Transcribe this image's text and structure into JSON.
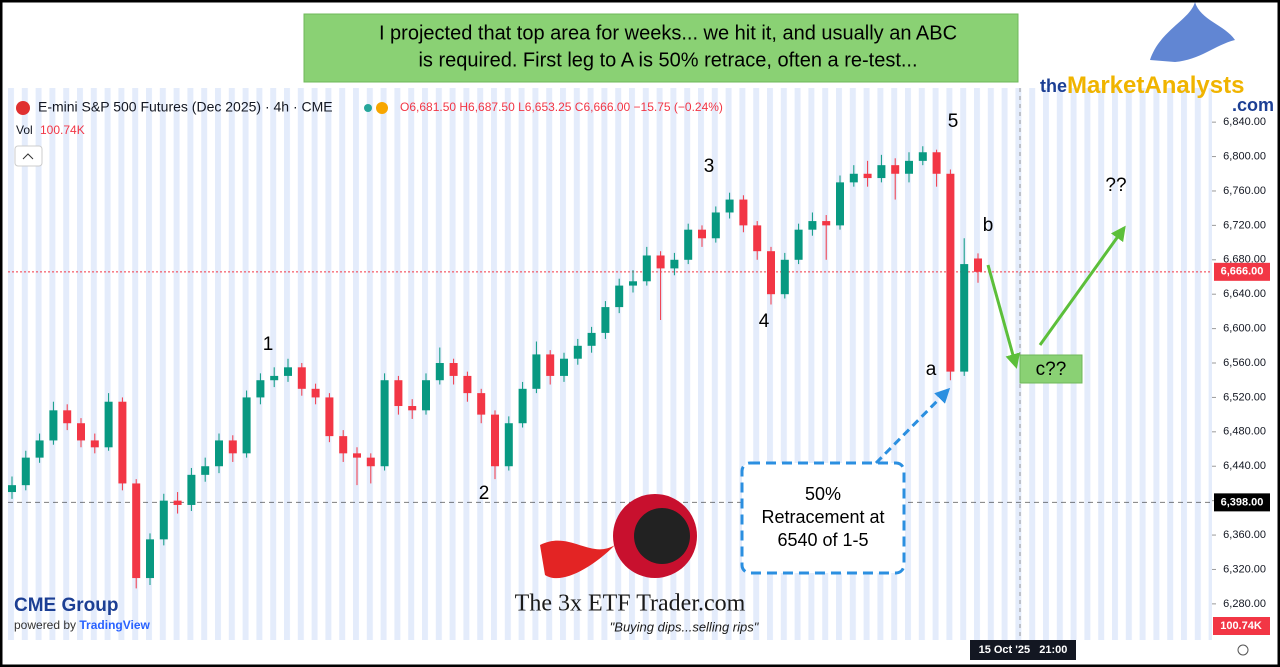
{
  "chart_data": {
    "type": "candlestick",
    "instrument": "E-mini S&P 500 Futures (Dec 2025) · 4h · CME",
    "ohlc_readout": "O6,681.50 H6,687.50 L6,653.25 C6,666.00 −15.75 (−0.24%)",
    "volume_label": "Vol",
    "volume_value": "100.74K",
    "volume_tag": "100.74K",
    "time_label": "15 Oct '25   21:00",
    "up_color": "#089981",
    "down_color": "#f23645",
    "ylim": [
      6238,
      6982
    ],
    "yticks": [
      {
        "value": 6280,
        "label": "6,280.00"
      },
      {
        "value": 6320,
        "label": "6,320.00"
      },
      {
        "value": 6360,
        "label": "6,360.00"
      },
      {
        "value": 6400,
        "label": "6,400.00"
      },
      {
        "value": 6440,
        "label": "6,440.00"
      },
      {
        "value": 6480,
        "label": "6,480.00"
      },
      {
        "value": 6520,
        "label": "6,520.00"
      },
      {
        "value": 6560,
        "label": "6,560.00"
      },
      {
        "value": 6600,
        "label": "6,600.00"
      },
      {
        "value": 6640,
        "label": "6,640.00"
      },
      {
        "value": 6680,
        "label": "6,680.00"
      },
      {
        "value": 6720,
        "label": "6,720.00"
      },
      {
        "value": 6760,
        "label": "6,760.00"
      },
      {
        "value": 6800,
        "label": "6,800.00"
      },
      {
        "value": 6840,
        "label": "6,840.00"
      }
    ],
    "price_lines": [
      {
        "value": 6666,
        "label": "6,666.00",
        "color": "#f23645"
      },
      {
        "value": 6398,
        "label": "6,398.00",
        "color": "#000000"
      }
    ],
    "open": [
      6410,
      6418,
      6450,
      6470,
      6505,
      6490,
      6470,
      6462,
      6515,
      6420,
      6310,
      6355,
      6400,
      6395,
      6430,
      6440,
      6470,
      6455,
      6520,
      6540,
      6545,
      6555,
      6530,
      6520,
      6475,
      6455,
      6450,
      6440,
      6540,
      6510,
      6505,
      6540,
      6560,
      6545,
      6525,
      6500,
      6440,
      6490,
      6530,
      6570,
      6545,
      6565,
      6580,
      6595,
      6625,
      6650,
      6655,
      6685,
      6670,
      6680,
      6715,
      6705,
      6735,
      6750,
      6720,
      6690,
      6640,
      6680,
      6715,
      6725,
      6720,
      6770,
      6780,
      6775,
      6790,
      6780,
      6795,
      6805,
      6780,
      6550,
      6681.5
    ],
    "high": [
      6428,
      6458,
      6478,
      6515,
      6512,
      6496,
      6478,
      6525,
      6520,
      6425,
      6362,
      6408,
      6410,
      6438,
      6450,
      6478,
      6476,
      6528,
      6548,
      6555,
      6565,
      6560,
      6536,
      6525,
      6482,
      6462,
      6455,
      6548,
      6545,
      6518,
      6548,
      6578,
      6565,
      6550,
      6530,
      6505,
      6498,
      6538,
      6585,
      6575,
      6572,
      6588,
      6602,
      6632,
      6658,
      6668,
      6695,
      6690,
      6688,
      6722,
      6720,
      6742,
      6758,
      6755,
      6725,
      6695,
      6688,
      6722,
      6735,
      6732,
      6778,
      6790,
      6795,
      6802,
      6798,
      6805,
      6812,
      6808,
      6785,
      6705,
      6687.5
    ],
    "low": [
      6402,
      6412,
      6444,
      6465,
      6482,
      6462,
      6455,
      6458,
      6412,
      6298,
      6302,
      6348,
      6385,
      6388,
      6422,
      6432,
      6445,
      6450,
      6512,
      6532,
      6538,
      6522,
      6512,
      6468,
      6445,
      6418,
      6420,
      6435,
      6500,
      6495,
      6500,
      6535,
      6535,
      6515,
      6490,
      6425,
      6435,
      6485,
      6525,
      6535,
      6538,
      6558,
      6572,
      6588,
      6618,
      6642,
      6650,
      6610,
      6662,
      6675,
      6695,
      6700,
      6728,
      6712,
      6680,
      6628,
      6635,
      6675,
      6708,
      6680,
      6715,
      6765,
      6765,
      6770,
      6750,
      6770,
      6790,
      6765,
      6540,
      6545,
      6653.25
    ],
    "close": [
      6418,
      6450,
      6470,
      6505,
      6490,
      6470,
      6462,
      6515,
      6420,
      6310,
      6355,
      6400,
      6395,
      6430,
      6440,
      6470,
      6455,
      6520,
      6540,
      6545,
      6555,
      6530,
      6520,
      6475,
      6455,
      6450,
      6440,
      6540,
      6510,
      6505,
      6540,
      6560,
      6545,
      6525,
      6500,
      6440,
      6490,
      6530,
      6570,
      6545,
      6565,
      6580,
      6595,
      6625,
      6650,
      6655,
      6685,
      6670,
      6680,
      6715,
      6705,
      6735,
      6750,
      6720,
      6690,
      6640,
      6680,
      6715,
      6725,
      6720,
      6770,
      6780,
      6775,
      6790,
      6780,
      6795,
      6805,
      6780,
      6550,
      6675,
      6666
    ]
  },
  "annotations": {
    "headline": [
      "I projected that top area for weeks... we hit it, and usually an ABC",
      "is required. First leg to A is 50% retrace, often a re-test..."
    ],
    "waves": [
      "1",
      "2",
      "3",
      "4",
      "5",
      "a",
      "b",
      "??",
      "c??"
    ],
    "retracement": [
      "50%",
      "Retracement at",
      "6540 of 1-5"
    ]
  },
  "logos": {
    "market_analysts": [
      "the",
      "Market",
      "Analysts",
      ".com"
    ],
    "cme": "CME Group",
    "powered": "powered by",
    "tradingview": "TradingView",
    "trader": "The 3x ETF Trader.com",
    "tagline": "\"Buying dips...selling rips\""
  }
}
